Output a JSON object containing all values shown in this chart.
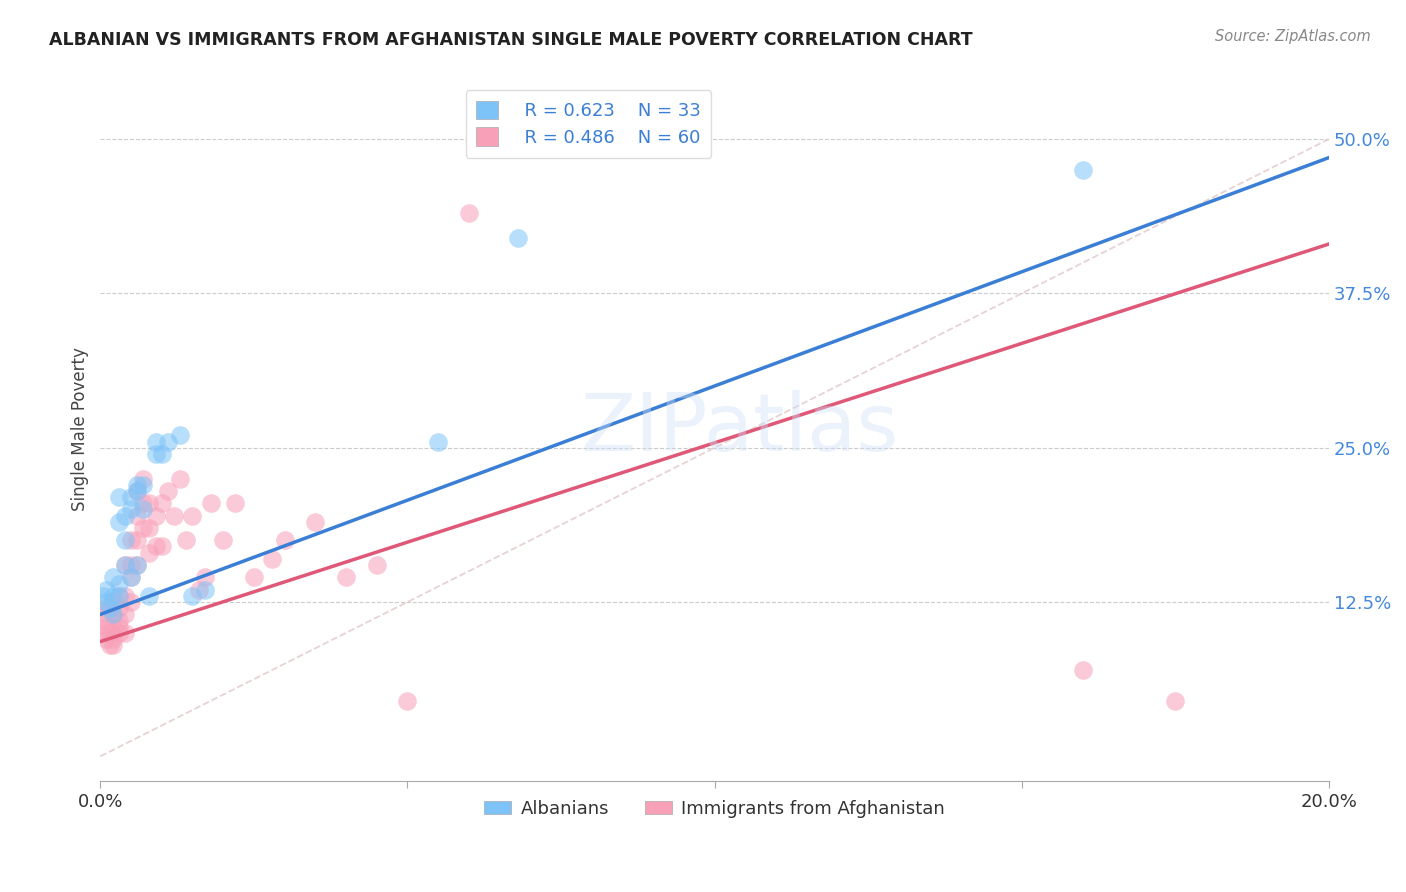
{
  "title": "ALBANIAN VS IMMIGRANTS FROM AFGHANISTAN SINGLE MALE POVERTY CORRELATION CHART",
  "source": "Source: ZipAtlas.com",
  "ylabel": "Single Male Poverty",
  "xlim": [
    0.0,
    0.2
  ],
  "ylim": [
    -0.02,
    0.55
  ],
  "yticks": [
    0.125,
    0.25,
    0.375,
    0.5
  ],
  "ytick_labels": [
    "12.5%",
    "25.0%",
    "37.5%",
    "50.0%"
  ],
  "xticks": [
    0.0,
    0.05,
    0.1,
    0.15,
    0.2
  ],
  "xtick_labels": [
    "0.0%",
    "",
    "",
    "",
    "20.0%"
  ],
  "legend_R1": "R = 0.623",
  "legend_N1": "N = 33",
  "legend_R2": "R = 0.486",
  "legend_N2": "N = 60",
  "color_blue": "#7dc3f8",
  "color_pink": "#f8a0b8",
  "color_blue_line": "#3a7fd5",
  "color_pink_line": "#e05878",
  "color_diag": "#e0c8c8",
  "background": "#ffffff",
  "watermark": "ZIPatlas",
  "blue_line_x0": 0.0,
  "blue_line_y0": 0.115,
  "blue_line_x1": 0.2,
  "blue_line_y1": 0.485,
  "pink_line_x0": 0.0,
  "pink_line_y0": 0.093,
  "pink_line_x1": 0.2,
  "pink_line_y1": 0.415,
  "albanian_x": [
    0.0005,
    0.001,
    0.001,
    0.0015,
    0.002,
    0.002,
    0.002,
    0.003,
    0.003,
    0.003,
    0.003,
    0.004,
    0.004,
    0.004,
    0.005,
    0.005,
    0.005,
    0.006,
    0.006,
    0.006,
    0.007,
    0.007,
    0.008,
    0.009,
    0.009,
    0.01,
    0.011,
    0.013,
    0.015,
    0.017,
    0.055,
    0.068,
    0.16
  ],
  "albanian_y": [
    0.13,
    0.125,
    0.135,
    0.12,
    0.13,
    0.145,
    0.115,
    0.13,
    0.14,
    0.19,
    0.21,
    0.195,
    0.175,
    0.155,
    0.2,
    0.21,
    0.145,
    0.215,
    0.22,
    0.155,
    0.2,
    0.22,
    0.13,
    0.255,
    0.245,
    0.245,
    0.255,
    0.26,
    0.13,
    0.135,
    0.255,
    0.42,
    0.475
  ],
  "afghan_x": [
    0.0003,
    0.0005,
    0.0008,
    0.001,
    0.001,
    0.001,
    0.0015,
    0.0015,
    0.002,
    0.002,
    0.002,
    0.002,
    0.002,
    0.003,
    0.003,
    0.003,
    0.003,
    0.003,
    0.004,
    0.004,
    0.004,
    0.004,
    0.005,
    0.005,
    0.005,
    0.005,
    0.006,
    0.006,
    0.006,
    0.006,
    0.007,
    0.007,
    0.007,
    0.008,
    0.008,
    0.008,
    0.009,
    0.009,
    0.01,
    0.01,
    0.011,
    0.012,
    0.013,
    0.014,
    0.015,
    0.016,
    0.017,
    0.018,
    0.02,
    0.022,
    0.025,
    0.028,
    0.03,
    0.035,
    0.04,
    0.045,
    0.05,
    0.06,
    0.16,
    0.175
  ],
  "afghan_y": [
    0.115,
    0.1,
    0.11,
    0.095,
    0.105,
    0.12,
    0.09,
    0.1,
    0.095,
    0.105,
    0.115,
    0.125,
    0.09,
    0.1,
    0.11,
    0.12,
    0.105,
    0.13,
    0.115,
    0.13,
    0.155,
    0.1,
    0.125,
    0.155,
    0.145,
    0.175,
    0.155,
    0.175,
    0.195,
    0.215,
    0.185,
    0.205,
    0.225,
    0.165,
    0.185,
    0.205,
    0.17,
    0.195,
    0.17,
    0.205,
    0.215,
    0.195,
    0.225,
    0.175,
    0.195,
    0.135,
    0.145,
    0.205,
    0.175,
    0.205,
    0.145,
    0.16,
    0.175,
    0.19,
    0.145,
    0.155,
    0.045,
    0.44,
    0.07,
    0.045
  ]
}
